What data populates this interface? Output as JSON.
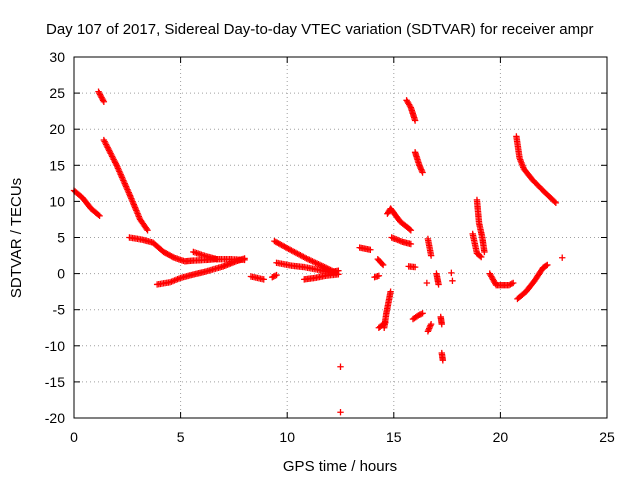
{
  "chart_data": {
    "type": "scatter",
    "title": "Day 107 of 2017, Sidereal Day-to-day VTEC variation (SDTVAR) for receiver ampr",
    "xlabel": "GPS time / hours",
    "ylabel": "SDTVAR / TECUs",
    "xlim": [
      0,
      25
    ],
    "ylim": [
      -20,
      30
    ],
    "xticks": [
      0,
      5,
      10,
      15,
      20,
      25
    ],
    "yticks": [
      -20,
      -15,
      -10,
      -5,
      0,
      5,
      10,
      15,
      20,
      25,
      30
    ],
    "grid": true,
    "marker": "+",
    "color": "#ff0000",
    "tracks": [
      [
        [
          0.0,
          11.5
        ],
        [
          0.4,
          10.5
        ],
        [
          0.8,
          9.0
        ],
        [
          1.2,
          8.0
        ]
      ],
      [
        [
          1.15,
          25.2
        ],
        [
          1.4,
          23.8
        ]
      ],
      [
        [
          1.4,
          18.5
        ],
        [
          2.0,
          15.0
        ],
        [
          2.6,
          11.0
        ],
        [
          3.1,
          7.5
        ],
        [
          3.45,
          6.0
        ]
      ],
      [
        [
          2.6,
          5.0
        ],
        [
          3.2,
          4.7
        ],
        [
          3.7,
          4.3
        ],
        [
          4.2,
          3.0
        ],
        [
          4.7,
          2.2
        ],
        [
          5.2,
          1.7
        ],
        [
          5.6,
          1.8
        ],
        [
          6.2,
          1.9
        ],
        [
          6.6,
          2.0
        ],
        [
          7.3,
          2.0
        ],
        [
          8.0,
          1.9
        ]
      ],
      [
        [
          3.9,
          -1.5
        ],
        [
          4.5,
          -1.2
        ],
        [
          5.0,
          -0.6
        ],
        [
          5.5,
          -0.2
        ],
        [
          6.2,
          0.3
        ],
        [
          7.0,
          1.0
        ],
        [
          7.6,
          1.7
        ],
        [
          8.0,
          2.1
        ]
      ],
      [
        [
          5.6,
          3.0
        ],
        [
          6.2,
          2.4
        ],
        [
          6.7,
          2.0
        ]
      ],
      [
        [
          8.3,
          -0.4
        ],
        [
          8.6,
          -0.6
        ],
        [
          8.9,
          -0.8
        ]
      ],
      [
        [
          9.3,
          -0.5
        ],
        [
          9.5,
          -0.2
        ]
      ],
      [
        [
          9.5,
          1.5
        ],
        [
          10.2,
          1.1
        ],
        [
          10.8,
          0.9
        ],
        [
          11.5,
          0.5
        ],
        [
          12.0,
          0.2
        ],
        [
          12.4,
          0.4
        ]
      ],
      [
        [
          9.4,
          4.5
        ],
        [
          10.2,
          3.2
        ],
        [
          10.9,
          2.1
        ],
        [
          11.4,
          1.4
        ],
        [
          11.9,
          0.7
        ],
        [
          12.3,
          0.1
        ]
      ],
      [
        [
          10.8,
          -0.8
        ],
        [
          11.3,
          -0.6
        ],
        [
          11.8,
          -0.3
        ],
        [
          12.4,
          -0.1
        ]
      ],
      [
        [
          12.5,
          -12.9
        ]
      ],
      [
        [
          12.5,
          -19.2
        ]
      ],
      [
        [
          13.4,
          3.6
        ],
        [
          13.9,
          3.3
        ]
      ],
      [
        [
          14.25,
          2.0
        ],
        [
          14.5,
          1.2
        ]
      ],
      [
        [
          14.1,
          -0.5
        ],
        [
          14.3,
          -0.3
        ]
      ],
      [
        [
          14.3,
          -7.5
        ],
        [
          14.6,
          -6.8
        ]
      ],
      [
        [
          14.55,
          -7.5
        ],
        [
          14.65,
          -5.5
        ],
        [
          14.75,
          -4.0
        ],
        [
          14.85,
          -2.5
        ]
      ],
      [
        [
          14.7,
          8.3
        ],
        [
          14.85,
          9.0
        ],
        [
          15.0,
          8.4
        ],
        [
          15.3,
          7.2
        ],
        [
          15.6,
          6.5
        ],
        [
          15.8,
          6.0
        ]
      ],
      [
        [
          14.9,
          5.0
        ],
        [
          15.4,
          4.4
        ],
        [
          15.8,
          4.1
        ]
      ],
      [
        [
          15.6,
          24.0
        ],
        [
          15.8,
          23.0
        ],
        [
          16.0,
          21.2
        ]
      ],
      [
        [
          15.7,
          1.0
        ],
        [
          16.0,
          0.9
        ]
      ],
      [
        [
          16.0,
          16.8
        ],
        [
          16.2,
          15.0
        ],
        [
          16.35,
          14.0
        ]
      ],
      [
        [
          15.9,
          -6.3
        ],
        [
          16.15,
          -5.8
        ],
        [
          16.35,
          -5.5
        ]
      ],
      [
        [
          16.6,
          4.8
        ],
        [
          16.75,
          2.5
        ]
      ],
      [
        [
          16.55,
          -1.3
        ]
      ],
      [
        [
          16.6,
          -8.0
        ],
        [
          16.75,
          -7.0
        ]
      ],
      [
        [
          17.0,
          0.0
        ],
        [
          17.1,
          -1.5
        ]
      ],
      [
        [
          17.2,
          -6.0
        ],
        [
          17.25,
          -7.0
        ]
      ],
      [
        [
          17.25,
          -11.0
        ],
        [
          17.3,
          -12.0
        ]
      ],
      [
        [
          17.7,
          0.1
        ]
      ],
      [
        [
          17.75,
          -1.0
        ]
      ],
      [
        [
          18.7,
          5.5
        ],
        [
          18.9,
          2.8
        ],
        [
          19.1,
          2.3
        ]
      ],
      [
        [
          18.9,
          10.2
        ],
        [
          19.0,
          7.0
        ],
        [
          19.15,
          5.0
        ],
        [
          19.25,
          3.0
        ]
      ],
      [
        [
          19.5,
          0.0
        ],
        [
          19.8,
          -1.6
        ],
        [
          20.2,
          -1.6
        ],
        [
          20.4,
          -1.6
        ],
        [
          20.6,
          -1.3
        ]
      ],
      [
        [
          20.75,
          19.0
        ],
        [
          20.9,
          16.0
        ],
        [
          21.1,
          14.5
        ],
        [
          21.5,
          13.0
        ],
        [
          22.0,
          11.5
        ],
        [
          22.6,
          9.8
        ]
      ],
      [
        [
          20.8,
          -3.5
        ],
        [
          21.2,
          -2.5
        ],
        [
          21.6,
          -1.0
        ],
        [
          22.0,
          0.8
        ],
        [
          22.2,
          1.2
        ]
      ],
      [
        [
          22.9,
          2.2
        ]
      ]
    ]
  }
}
